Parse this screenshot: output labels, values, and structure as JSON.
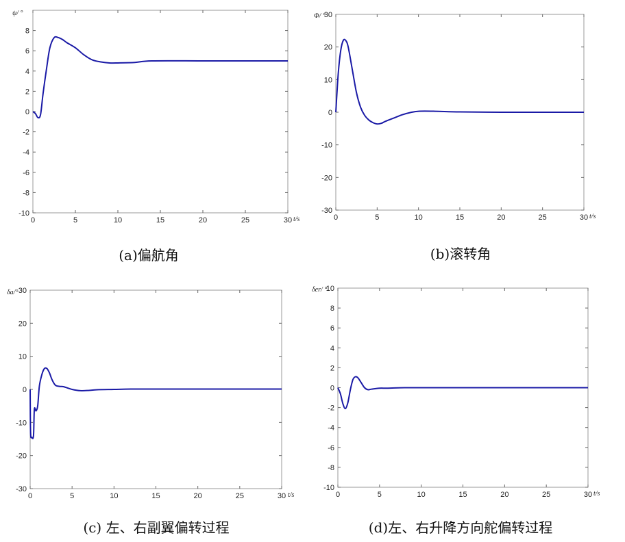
{
  "chart_data": [
    {
      "type": "line",
      "caption": "(a)偏航角",
      "ylabel": "ψ/ °",
      "xlabel": "t/s",
      "xlim": [
        0,
        30
      ],
      "ylim": [
        -10,
        10
      ],
      "xticks": [
        "0",
        "5",
        "10",
        "15",
        "20",
        "25",
        "30"
      ],
      "yticks": [
        "-10",
        "-8",
        "-6",
        "-4",
        "-2",
        "0",
        "2",
        "4",
        "6",
        "8"
      ],
      "line_color": "#1a1aa6",
      "series": [
        {
          "x": [
            0,
            0.3,
            0.6,
            0.9,
            1.2,
            1.6,
            2.0,
            2.5,
            3.0,
            3.5,
            4.0,
            5.0,
            6.0,
            7.0,
            8.0,
            9.0,
            10.0,
            12.0,
            14.0,
            20.0,
            25.0,
            30.0
          ],
          "y": [
            0,
            -0.2,
            -0.6,
            -0.3,
            1.8,
            4.2,
            6.3,
            7.3,
            7.3,
            7.1,
            6.8,
            6.3,
            5.6,
            5.1,
            4.9,
            4.8,
            4.8,
            4.85,
            5.0,
            5.0,
            5.0,
            5.0
          ]
        }
      ]
    },
    {
      "type": "line",
      "caption": "(b)滚转角",
      "ylabel": "Φ/ °",
      "xlabel": "t/s",
      "xlim": [
        0,
        30
      ],
      "ylim": [
        -30,
        30
      ],
      "xticks": [
        "0",
        "5",
        "10",
        "15",
        "20",
        "25",
        "30"
      ],
      "yticks": [
        "-30",
        "-20",
        "-10",
        "0",
        "10",
        "20"
      ],
      "top_ytick": "30",
      "line_color": "#1a1aa6",
      "series": [
        {
          "x": [
            0,
            0.3,
            0.6,
            0.9,
            1.2,
            1.5,
            2.0,
            2.5,
            3.0,
            3.5,
            4.0,
            4.5,
            5.0,
            5.5,
            6.0,
            7.0,
            8.0,
            9.0,
            10.0,
            12.0,
            15.0,
            20.0,
            25.0,
            30.0
          ],
          "y": [
            0,
            12,
            19,
            22,
            22,
            20,
            13,
            6,
            1.5,
            -1.0,
            -2.4,
            -3.2,
            -3.6,
            -3.4,
            -2.8,
            -1.8,
            -0.8,
            -0.1,
            0.3,
            0.3,
            0.1,
            0,
            0,
            0
          ]
        }
      ]
    },
    {
      "type": "line",
      "caption": "(c) 左、右副翼偏转过程",
      "ylabel": "δa/°",
      "xlabel": "t/s",
      "xlim": [
        0,
        30
      ],
      "ylim": [
        -30,
        30
      ],
      "xticks": [
        "0",
        "5",
        "10",
        "15",
        "20",
        "25",
        "30"
      ],
      "yticks": [
        "-30",
        "-20",
        "-10",
        "0",
        "10",
        "20"
      ],
      "top_ytick": "30",
      "line_color": "#1a1aa6",
      "series": [
        {
          "x": [
            0,
            0.05,
            0.2,
            0.4,
            0.5,
            0.7,
            0.9,
            1.1,
            1.4,
            1.7,
            2.0,
            2.3,
            2.6,
            3.0,
            3.5,
            4.0,
            5.0,
            6.0,
            7.0,
            8.0,
            10.0,
            12.0,
            15.0,
            20.0,
            25.0,
            30.0
          ],
          "y": [
            0,
            -13,
            -14.5,
            -14,
            -6,
            -6.5,
            -5,
            1,
            4.5,
            6.3,
            6.3,
            5.0,
            3.0,
            1.3,
            0.9,
            0.8,
            0,
            -0.4,
            -0.3,
            -0.1,
            0,
            0.1,
            0.1,
            0.1,
            0.1,
            0.1
          ]
        }
      ]
    },
    {
      "type": "line",
      "caption": "(d)左、右升降方向舵偏转过程",
      "ylabel": "δer/ °",
      "xlabel": "t/s",
      "xlim": [
        0,
        30
      ],
      "ylim": [
        -10,
        10
      ],
      "xticks": [
        "0",
        "5",
        "10",
        "15",
        "20",
        "25",
        "30"
      ],
      "yticks": [
        "-10",
        "-8",
        "-6",
        "-4",
        "-2",
        "0",
        "2",
        "4",
        "6",
        "8"
      ],
      "top_ytick": "10",
      "line_color": "#1a1aa6",
      "series": [
        {
          "x": [
            0,
            0.3,
            0.6,
            0.9,
            1.2,
            1.5,
            1.8,
            2.1,
            2.4,
            2.8,
            3.2,
            3.6,
            4.0,
            5.0,
            6.0,
            8.0,
            10.0,
            15.0,
            20.0,
            25.0,
            30.0
          ],
          "y": [
            0,
            -0.6,
            -1.6,
            -2.1,
            -1.5,
            -0.2,
            0.8,
            1.1,
            1.0,
            0.5,
            0,
            -0.2,
            -0.15,
            -0.05,
            -0.05,
            0,
            0,
            0,
            0,
            0,
            0
          ]
        }
      ]
    }
  ]
}
